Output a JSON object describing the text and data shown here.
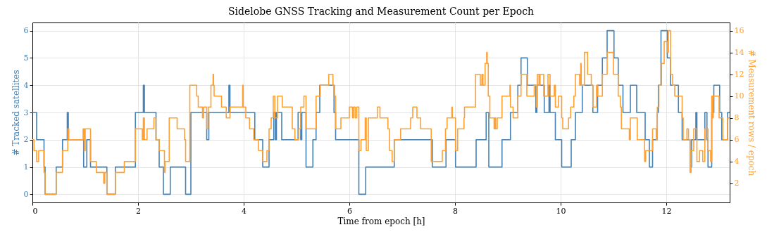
{
  "chart_data": {
    "type": "step",
    "title": "Sidelobe GNSS Tracking and Measurement Count per Epoch",
    "xlabel": "Time from epoch [h]",
    "ylabel": "# Tracked satellites",
    "y2label": "# Measurement rows / epoch",
    "xlim": [
      0,
      13.2
    ],
    "xticks": [
      0,
      2,
      4,
      6,
      8,
      10,
      12
    ],
    "ylim": [
      -0.3,
      6.3
    ],
    "yticks": [
      0,
      1,
      2,
      3,
      4,
      5,
      6
    ],
    "y2lim": [
      0.25,
      16.75
    ],
    "y2ticks": [
      2,
      4,
      6,
      8,
      10,
      12,
      14,
      16
    ],
    "grid": true,
    "series": [
      {
        "color": "#4682b4",
        "x": [
          0,
          0.08,
          0.22,
          0.24,
          0.45,
          0.57,
          0.66,
          0.68,
          0.97,
          1.03,
          1.1,
          1.41,
          1.57,
          1.95,
          2.1,
          2.12,
          2.34,
          2.4,
          2.48,
          2.61,
          2.9,
          3.0,
          3.3,
          3.34,
          3.72,
          3.74,
          4.21,
          4.36,
          4.48,
          4.57,
          4.6,
          4.62,
          4.72,
          5.03,
          5.08,
          5.1,
          5.18,
          5.31,
          5.37,
          5.44,
          5.71,
          5.74,
          6.18,
          6.31,
          6.85,
          7.57,
          7.83,
          8.01,
          8.4,
          8.59,
          8.64,
          8.89,
          9.05,
          9.19,
          9.25,
          9.37,
          9.53,
          9.55,
          9.69,
          9.78,
          9.8,
          9.9,
          10.02,
          10.2,
          10.28,
          10.41,
          10.61,
          10.7,
          10.79,
          10.88,
          11.01,
          11.09,
          11.18,
          11.32,
          11.44,
          11.6,
          11.68,
          11.74,
          11.83,
          11.85,
          11.9,
          12.02,
          12.08,
          12.23,
          12.3,
          12.45,
          12.48,
          12.56,
          12.58,
          12.73,
          12.77,
          12.79,
          12.86,
          12.9,
          13.01,
          13.05,
          13.16,
          13.2
        ],
        "values": [
          3,
          2,
          1,
          0,
          1,
          2,
          3,
          2,
          1,
          2,
          1,
          0,
          1,
          3,
          4,
          3,
          2,
          1,
          0,
          1,
          0,
          3,
          2,
          3,
          4,
          3,
          2,
          1,
          2,
          3,
          2,
          3,
          2,
          3,
          2,
          3,
          1,
          2,
          3,
          4,
          3,
          2,
          0,
          1,
          2,
          1,
          2,
          1,
          2,
          3,
          1,
          2,
          3,
          4,
          5,
          4,
          3,
          4,
          3,
          4,
          3,
          2,
          1,
          2,
          3,
          4,
          3,
          4,
          5,
          6,
          5,
          4,
          3,
          4,
          3,
          2,
          1,
          2,
          3,
          4,
          6,
          5,
          4,
          3,
          2,
          1,
          2,
          3,
          2,
          3,
          2,
          1,
          3,
          4,
          3,
          2,
          3,
          3
        ]
      },
      {
        "color": "#ffa033",
        "axis": "y2",
        "x": [
          0,
          0.03,
          0.08,
          0.12,
          0.22,
          0.24,
          0.45,
          0.57,
          0.67,
          0.69,
          0.96,
          0.98,
          1.0,
          1.1,
          1.21,
          1.35,
          1.37,
          1.41,
          1.57,
          1.74,
          1.95,
          2.08,
          2.1,
          2.12,
          2.17,
          2.3,
          2.34,
          2.4,
          2.5,
          2.51,
          2.59,
          2.74,
          2.88,
          2.9,
          2.98,
          3.11,
          3.14,
          3.22,
          3.24,
          3.3,
          3.33,
          3.38,
          3.42,
          3.43,
          3.44,
          3.58,
          3.67,
          3.74,
          3.98,
          3.99,
          4.04,
          4.11,
          4.19,
          4.28,
          4.36,
          4.44,
          4.48,
          4.52,
          4.56,
          4.59,
          4.64,
          4.73,
          4.92,
          4.97,
          5.04,
          5.08,
          5.14,
          5.18,
          5.37,
          5.45,
          5.61,
          5.69,
          5.72,
          5.74,
          5.84,
          6.0,
          6.06,
          6.08,
          6.11,
          6.14,
          6.18,
          6.22,
          6.3,
          6.32,
          6.36,
          6.53,
          6.58,
          6.73,
          6.76,
          6.81,
          6.85,
          6.97,
          7.16,
          7.2,
          7.28,
          7.35,
          7.55,
          7.76,
          7.82,
          7.85,
          7.94,
          7.95,
          8.01,
          8.05,
          8.17,
          8.18,
          8.39,
          8.48,
          8.51,
          8.53,
          8.57,
          8.6,
          8.61,
          8.63,
          8.66,
          8.74,
          8.76,
          8.77,
          8.8,
          8.89,
          9.04,
          9.05,
          9.1,
          9.19,
          9.25,
          9.36,
          9.5,
          9.54,
          9.56,
          9.59,
          9.61,
          9.68,
          9.76,
          9.8,
          9.88,
          9.9,
          9.96,
          10.02,
          10.04,
          10.15,
          10.19,
          10.25,
          10.28,
          10.36,
          10.38,
          10.39,
          10.45,
          10.51,
          10.58,
          10.61,
          10.68,
          10.7,
          10.79,
          10.88,
          11.0,
          11.09,
          11.13,
          11.15,
          11.3,
          11.32,
          11.45,
          11.59,
          11.61,
          11.74,
          11.81,
          11.83,
          11.86,
          11.91,
          11.96,
          12.02,
          12.04,
          12.08,
          12.12,
          12.16,
          12.3,
          12.32,
          12.39,
          12.42,
          12.45,
          12.47,
          12.52,
          12.58,
          12.63,
          12.69,
          12.73,
          12.79,
          12.84,
          12.86,
          12.88,
          12.89,
          13.0,
          13.07,
          13.16,
          13.2
        ],
        "values": [
          6,
          5,
          4,
          5,
          3,
          1,
          3,
          5,
          7,
          6,
          7,
          5,
          7,
          4,
          3,
          2,
          3,
          1,
          3,
          4,
          7,
          6,
          8,
          6,
          7,
          8,
          6,
          5,
          3,
          4,
          8,
          7,
          6,
          4,
          11,
          10,
          9,
          8,
          9,
          7,
          9,
          11,
          12,
          11,
          10,
          9,
          8,
          9,
          11,
          9,
          8,
          7,
          6,
          5,
          4,
          5,
          7,
          8,
          10,
          8,
          10,
          9,
          7,
          6,
          7,
          9,
          10,
          7,
          10,
          11,
          12,
          11,
          10,
          7,
          8,
          9,
          8,
          9,
          8,
          9,
          5,
          6,
          8,
          5,
          8,
          9,
          8,
          7,
          5,
          4,
          6,
          7,
          8,
          9,
          8,
          7,
          4,
          5,
          7,
          8,
          9,
          8,
          5,
          7,
          8,
          9,
          12,
          11,
          12,
          11,
          13,
          14,
          13,
          10,
          8,
          7,
          8,
          7,
          8,
          10,
          11,
          9,
          8,
          10,
          12,
          10,
          11,
          9,
          12,
          11,
          12,
          10,
          12,
          10,
          11,
          9,
          10,
          8,
          7,
          8,
          9,
          10,
          12,
          11,
          13,
          11,
          14,
          12,
          11,
          9,
          11,
          10,
          12,
          14,
          12,
          10,
          9,
          7,
          6,
          8,
          6,
          4,
          5,
          7,
          6,
          9,
          11,
          13,
          15,
          14,
          16,
          12,
          11,
          10,
          8,
          6,
          7,
          6,
          3,
          5,
          7,
          4,
          5,
          4,
          7,
          5,
          4,
          10,
          8,
          10,
          8,
          6,
          8,
          8
        ]
      }
    ]
  }
}
